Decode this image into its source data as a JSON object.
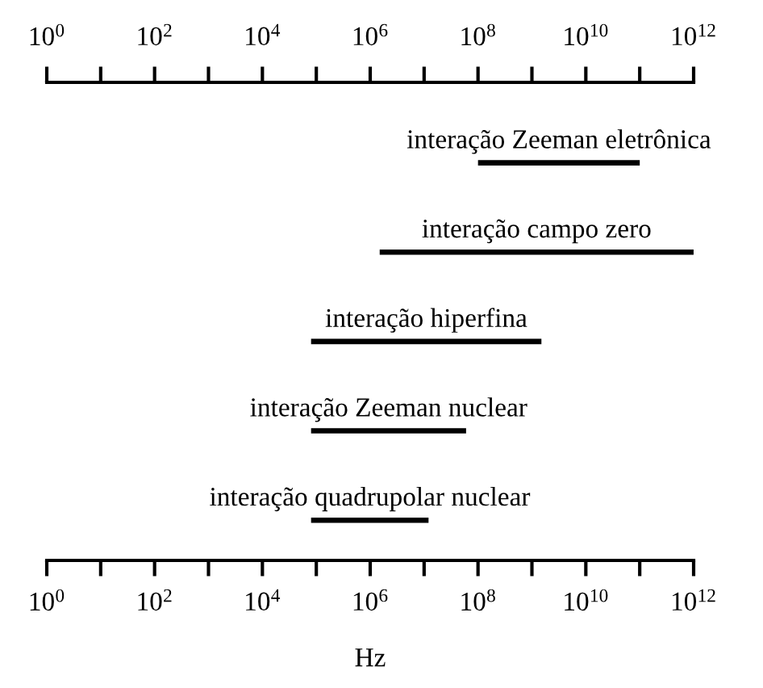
{
  "chart_data": {
    "type": "bar",
    "orientation": "horizontal",
    "log": "x",
    "color": "#000000",
    "categories": [
      "interação Zeeman eletrônica",
      "interação campo zero",
      "interação hiperfina",
      "interação Zeeman nuclear",
      "interação quadrupolar nuclear"
    ],
    "base": [
      100000000,
      1500000,
      80000,
      80000,
      80000
    ],
    "values": [
      100000000000,
      998000000000,
      1500000000,
      60000000,
      12000000
    ],
    "xlabel": "Hz",
    "xlim": [
      1,
      1000000000000
    ],
    "xticks": [
      {
        "value": 1,
        "label": "10$^{0}$"
      },
      {
        "value": 10,
        "label": null
      },
      {
        "value": 100,
        "label": "10$^{2}$"
      },
      {
        "value": 1000,
        "label": null
      },
      {
        "value": 10000,
        "label": "10$^{4}$"
      },
      {
        "value": 100000,
        "label": null
      },
      {
        "value": 1000000,
        "label": "10$^{6}$"
      },
      {
        "value": 10000000,
        "label": null
      },
      {
        "value": 100000000,
        "label": "10$^{8}$"
      },
      {
        "value": 1000000000,
        "label": null
      },
      {
        "value": 10000000000,
        "label": "10$^{10}$"
      },
      {
        "value": 100000000000,
        "label": null
      },
      {
        "value": 1000000000000,
        "label": "10$^{12}$"
      }
    ]
  }
}
